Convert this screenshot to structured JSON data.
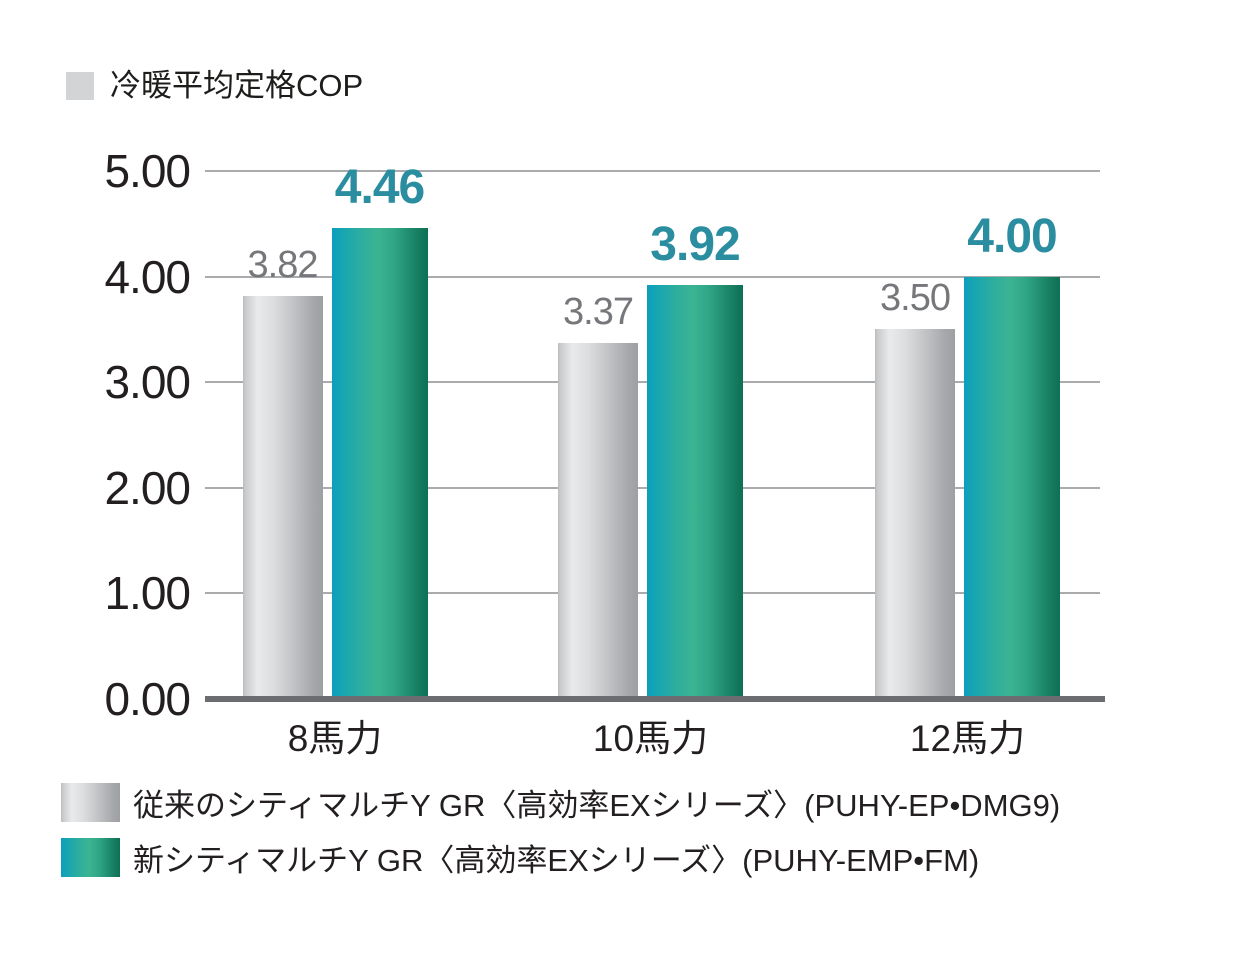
{
  "title": {
    "label": "冷暖平均定格COP"
  },
  "chart_data": {
    "type": "bar",
    "title": "冷暖平均定格COP",
    "categories": [
      "8馬力",
      "10馬力",
      "12馬力"
    ],
    "series": [
      {
        "name": "従来のシティマルチY GR〈高効率EXシリーズ〉(PUHY-EP•DMG9)",
        "style": "gray",
        "values": [
          3.82,
          3.37,
          3.5
        ]
      },
      {
        "name": "新シティマルチY GR〈高効率EXシリーズ〉(PUHY-EMP•FM)",
        "style": "teal",
        "values": [
          4.46,
          3.92,
          4.0
        ]
      }
    ],
    "ylim": [
      0,
      5
    ],
    "yticks": [
      "5.00",
      "4.00",
      "3.00",
      "2.00",
      "1.00",
      "0.00"
    ],
    "grid": true,
    "legend_position": "bottom"
  },
  "legend": {
    "items": [
      {
        "label": "従来のシティマルチY GR〈高効率EXシリーズ〉(PUHY-EP•DMG9)",
        "swatch": "gray"
      },
      {
        "label": "新シティマルチY GR〈高効率EXシリーズ〉(PUHY-EMP•FM)",
        "swatch": "teal"
      }
    ]
  },
  "colors": {
    "new_value_text": "#2b8da0",
    "old_value_text": "#76777a",
    "axis_text": "#231f20",
    "gridline": "#a9abad",
    "baseline": "#6b6d70",
    "gray_bar_light": "#e9eaeb",
    "gray_bar_dark": "#9ea0a3",
    "teal_bar_cyan": "#0b9fbe",
    "teal_bar_green": "#3bb492",
    "teal_bar_dark": "#0e6f54",
    "title_swatch": "#d3d4d6"
  }
}
